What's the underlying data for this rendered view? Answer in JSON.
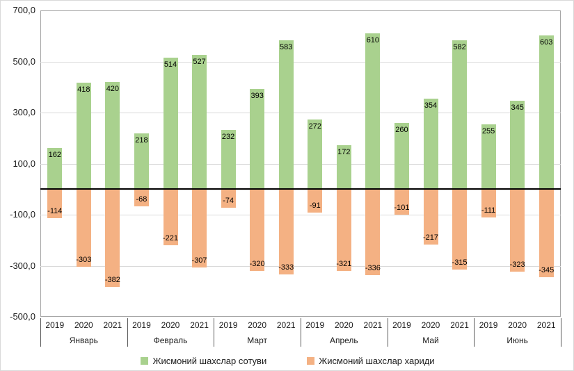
{
  "chart_data": {
    "type": "bar",
    "title": "",
    "group_labels": [
      "Январь",
      "Февраль",
      "Март",
      "Апрель",
      "Май",
      "Июнь"
    ],
    "x_sublabels": [
      "2019",
      "2020",
      "2021"
    ],
    "series": [
      {
        "name": "Жисмоний шахслар сотуви",
        "color": "#a9d18e",
        "values": [
          [
            162,
            418,
            420
          ],
          [
            218,
            514,
            527
          ],
          [
            232,
            393,
            583
          ],
          [
            272,
            172,
            610
          ],
          [
            260,
            354,
            582
          ],
          [
            255,
            345,
            603
          ]
        ]
      },
      {
        "name": "Жисмоний шахслар хариди",
        "color": "#f4b183",
        "values": [
          [
            -114,
            -303,
            -382
          ],
          [
            -68,
            -221,
            -307
          ],
          [
            -74,
            -320,
            -333
          ],
          [
            -91,
            -321,
            -336
          ],
          [
            -101,
            -217,
            -315
          ],
          [
            -111,
            -323,
            -345
          ]
        ]
      }
    ],
    "y_axis": {
      "min": -500,
      "max": 700,
      "step": 200,
      "ticks": [
        {
          "value": 700,
          "label": "700,0"
        },
        {
          "value": 500,
          "label": "500,0"
        },
        {
          "value": 300,
          "label": "300,0"
        },
        {
          "value": 100,
          "label": "100,0"
        },
        {
          "value": -100,
          "label": "-100,0"
        },
        {
          "value": -300,
          "label": "-300,0"
        },
        {
          "value": -500,
          "label": "-500,0"
        }
      ],
      "gridline_values": [
        500,
        300,
        100,
        -100,
        -300
      ]
    },
    "grid": true,
    "legend_position": "bottom"
  }
}
